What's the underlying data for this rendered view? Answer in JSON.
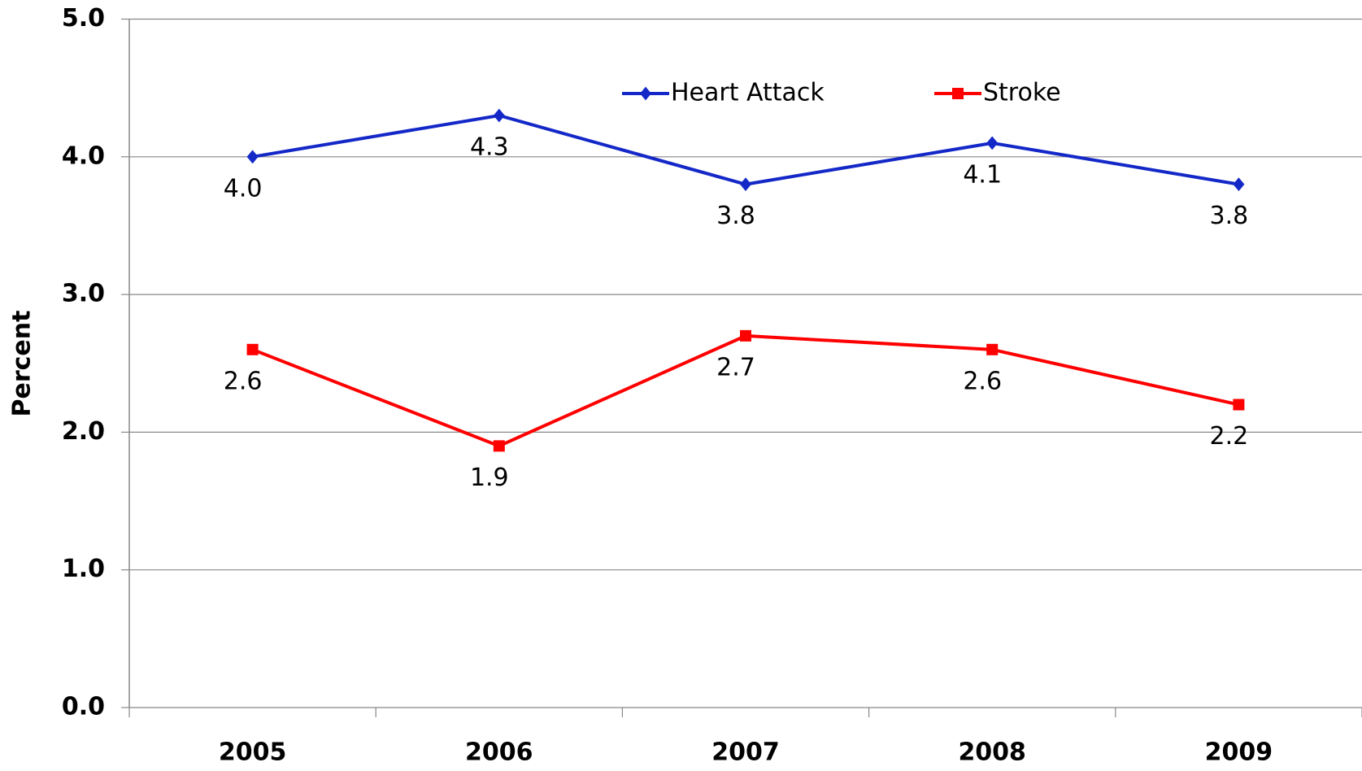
{
  "chart_data": {
    "type": "line",
    "y_label": "Percent",
    "categories": [
      "2005",
      "2006",
      "2007",
      "2008",
      "2009"
    ],
    "series": [
      {
        "name": "Heart Attack",
        "color": "#1428c8",
        "marker": "diamond",
        "values": [
          4.0,
          4.3,
          3.8,
          4.1,
          3.8
        ],
        "value_labels": [
          "4.0",
          "4.3",
          "3.8",
          "4.1",
          "3.8"
        ]
      },
      {
        "name": "Stroke",
        "color": "#ff0000",
        "marker": "square",
        "values": [
          2.6,
          1.9,
          2.7,
          2.6,
          2.2
        ],
        "value_labels": [
          "2.6",
          "1.9",
          "2.7",
          "2.6",
          "2.2"
        ]
      }
    ],
    "ylim": [
      0,
      5
    ],
    "yticks": [
      {
        "value": 0,
        "label": "0.0"
      },
      {
        "value": 1,
        "label": "1.0"
      },
      {
        "value": 2,
        "label": "2.0"
      },
      {
        "value": 3,
        "label": "3.0"
      },
      {
        "value": 4,
        "label": "4.0"
      },
      {
        "value": 5,
        "label": "5.0"
      }
    ],
    "grid": true
  }
}
